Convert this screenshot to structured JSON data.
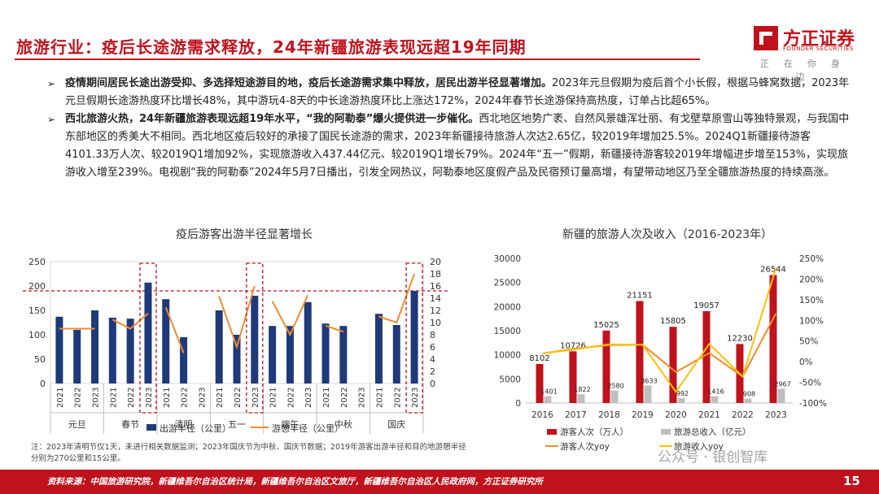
{
  "page": {
    "title": "旅游行业：疫后长途游需求释放，24年新疆旅游表现远超19年同期",
    "logo_main": "方正证券",
    "logo_sub": "FOUNDER SECURITIES",
    "logo_slogan": "正在你身边",
    "bullet1_bold": "疫情期间居民长途出游受抑、多选择短途游目的地，疫后长途游需求集中释放，居民出游半径显著增加。",
    "bullet1_text": "2023年元旦假期为疫后首个小长假，根据马蜂窝数据，2023年元旦假期长途游热度环比增长48%，其中游玩4-8天的中长途游热度环比上涨达172%，2024年春节长途游保持高热度，订单占比超65%。",
    "bullet2_bold": "西北旅游火热，24年新疆旅游表现远超19年水平，“我的阿勒泰”爆火提供进一步催化。",
    "bullet2_text": "西北地区地势广袤、自然风景雄浑壮丽、有戈壁草原雪山等独特景观，与我国中东部地区的秀美大不相同。西北地区疫后较好的承接了国民长途游的需求，2023年新疆接待旅游人次达2.65亿，较2019年增加25.5%。2024Q1新疆接待游客4101.33万人次、较2019Q1增加92%，实现旅游收入437.44亿元、较2019Q1增长79%。2024年“五一”假期，新疆接待游客较2019年增幅进步增至153%，实现旅游收入增至239%。电视剧“我的阿勒泰”2024年5月7日播出，引发全网热议，阿勒泰地区度假产品及民宿预订量高增，有望带动地区乃至全疆旅游热度的持续高涨。",
    "footnote": "注：2023年清明节仅1天，未进行相关数据监测；2023年国庆节为中秋、国庆节数据；2019年游客出游半径和目的地游憩半径分别为270公里和15公里。",
    "source": "资料来源：中国旅游研究院，新疆维吾尔自治区统计局，新疆维吾尔自治区文旅厅，新疆维吾尔自治区人民政府网，方正证券研究所",
    "page_number": "15",
    "watermark": "公众号 · 银创智库",
    "colors": {
      "accent": "#c0121c",
      "navy": "#1f3a7a",
      "orange": "#f08c2e",
      "gray": "#bfbfbf",
      "yellow": "#ffc000"
    }
  },
  "chart_data": [
    {
      "type": "bar",
      "title": "疫后游客出游半径显著增长",
      "categories": [
        "2021",
        "2022",
        "2023",
        "2021",
        "2022",
        "2023",
        "2021",
        "2022",
        "2023",
        "2021",
        "2022",
        "2023",
        "2021",
        "2022",
        "2023",
        "2021",
        "2022",
        "2023",
        "2021",
        "2022",
        "2023"
      ],
      "groups": [
        "元旦",
        "春节",
        "清明",
        "五一",
        "端午",
        "中秋",
        "国庆"
      ],
      "series": [
        {
          "name": "出游半径（公里）",
          "axis": "left",
          "values": [
            137,
            110,
            150,
            135,
            133,
            207,
            173,
            95,
            null,
            150,
            100,
            180,
            118,
            118,
            167,
            123,
            118,
            null,
            143,
            120,
            190
          ]
        },
        {
          "name": "游憩半径（公里）",
          "axis": "right",
          "values": [
            9,
            9,
            9,
            10.5,
            9,
            11.5,
            12.5,
            5,
            null,
            14.3,
            6,
            16,
            13.5,
            8,
            14.5,
            9.5,
            8.5,
            null,
            11,
            10,
            18
          ]
        }
      ],
      "ylim_left": [
        0,
        250
      ],
      "yticks_left": [
        0,
        50,
        100,
        150,
        200,
        250
      ],
      "ylim_right": [
        0,
        20
      ],
      "yticks_right": [
        0,
        2,
        4,
        6,
        8,
        10,
        12,
        14,
        16,
        18,
        20
      ],
      "reference_line": 190,
      "highlighted": [
        "2023 春节",
        "2023 五一",
        "2023 国庆"
      ]
    },
    {
      "type": "bar",
      "title": "新疆的旅游人次及收入（2016-2023年）",
      "categories": [
        "2016",
        "2017",
        "2018",
        "2019",
        "2020",
        "2021",
        "2022",
        "2023"
      ],
      "series": [
        {
          "name": "游客人次（万人）",
          "axis": "left",
          "values": [
            8102,
            10726,
            15025,
            21151,
            15805,
            19057,
            12230,
            26544
          ]
        },
        {
          "name": "旅游总收入（亿元）",
          "axis": "left",
          "values": [
            1401,
            1822,
            2580,
            3633,
            992,
            1416,
            908,
            2967
          ]
        },
        {
          "name": "游客人次yoy",
          "axis": "right",
          "values": [
            null,
            32,
            40,
            41,
            -25,
            21,
            -36,
            117
          ]
        },
        {
          "name": "旅游收入yoy",
          "axis": "right",
          "values": [
            null,
            30,
            42,
            41,
            -73,
            43,
            -36,
            227
          ]
        }
      ],
      "ylim_left": [
        0,
        30000
      ],
      "yticks_left": [
        0,
        5000,
        10000,
        15000,
        20000,
        25000,
        30000
      ],
      "ylim_right": [
        -100,
        250
      ],
      "yticks_right": [
        "-100%",
        "-50%",
        "0%",
        "50%",
        "100%",
        "150%",
        "200%",
        "250%"
      ]
    }
  ]
}
